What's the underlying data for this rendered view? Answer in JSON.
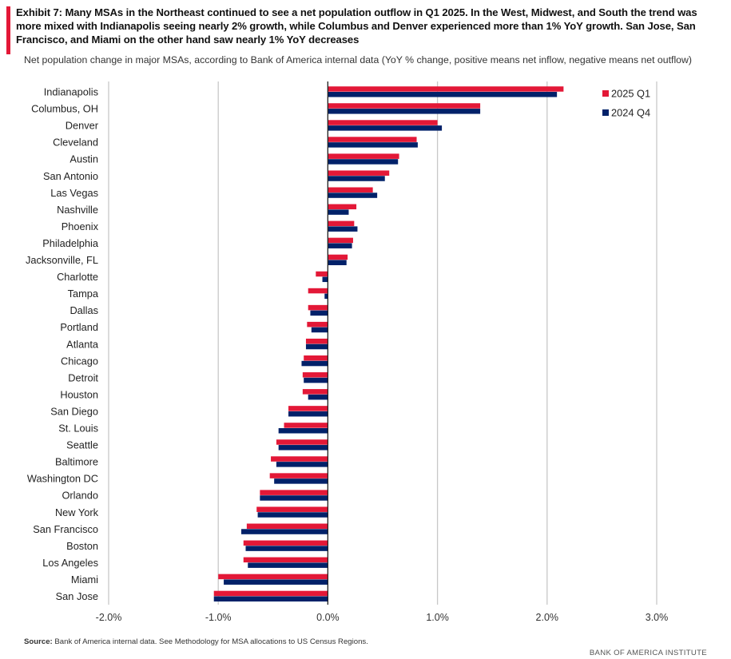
{
  "header": {
    "title": "Exhibit 7: Many MSAs in the Northeast continued to see a net population outflow in Q1 2025. In the West, Midwest, and South the trend was more mixed with Indianapolis seeing nearly 2% growth, while Columbus and Denver experienced more than 1% YoY growth. San Jose, San Francisco, and Miami on the other hand saw nearly 1% YoY decreases",
    "subtitle": "Net population change in major MSAs, according to Bank of America internal data (YoY % change, positive means net inflow, negative means net outflow)"
  },
  "footer": {
    "source_label": "Source:",
    "source_text": " Bank of America internal data. See Methodology for MSA allocations to US Census Regions.",
    "brand": "BANK OF AMERICA INSTITUTE"
  },
  "colors": {
    "series_2025q1": "#e31837",
    "series_2024q4": "#012169",
    "gridline": "#c8c8c8",
    "accent": "#e31837"
  },
  "chart_data": {
    "type": "bar",
    "orientation": "horizontal",
    "grid": true,
    "legend_position": "top-right",
    "xlim": [
      -2.0,
      3.0
    ],
    "x_ticks": [
      -2.0,
      -1.0,
      0.0,
      1.0,
      2.0,
      3.0
    ],
    "x_tick_labels": [
      "-2.0%",
      "-1.0%",
      "0.0%",
      "1.0%",
      "2.0%",
      "3.0%"
    ],
    "categories": [
      "Indianapolis",
      "Columbus, OH",
      "Denver",
      "Cleveland",
      "Austin",
      "San Antonio",
      "Las Vegas",
      "Nashville",
      "Phoenix",
      "Philadelphia",
      "Jacksonville, FL",
      "Charlotte",
      "Tampa",
      "Dallas",
      "Portland",
      "Atlanta",
      "Chicago",
      "Detroit",
      "Houston",
      "San Diego",
      "St. Louis",
      "Seattle",
      "Baltimore",
      "Washington DC",
      "Orlando",
      "New York",
      "San Francisco",
      "Boston",
      "Los Angeles",
      "Miami",
      "San Jose"
    ],
    "series": [
      {
        "name": "2025 Q1",
        "values": [
          2.15,
          1.39,
          1.0,
          0.81,
          0.65,
          0.56,
          0.41,
          0.26,
          0.24,
          0.23,
          0.18,
          -0.11,
          -0.18,
          -0.18,
          -0.19,
          -0.2,
          -0.22,
          -0.23,
          -0.23,
          -0.36,
          -0.4,
          -0.47,
          -0.52,
          -0.53,
          -0.62,
          -0.65,
          -0.74,
          -0.77,
          -0.77,
          -1.0,
          -1.04
        ]
      },
      {
        "name": "2024 Q4",
        "values": [
          2.09,
          1.39,
          1.04,
          0.82,
          0.64,
          0.52,
          0.45,
          0.19,
          0.27,
          0.22,
          0.17,
          -0.05,
          -0.03,
          -0.16,
          -0.15,
          -0.2,
          -0.24,
          -0.22,
          -0.18,
          -0.36,
          -0.45,
          -0.45,
          -0.47,
          -0.49,
          -0.62,
          -0.64,
          -0.79,
          -0.75,
          -0.73,
          -0.95,
          -1.04
        ]
      }
    ]
  }
}
